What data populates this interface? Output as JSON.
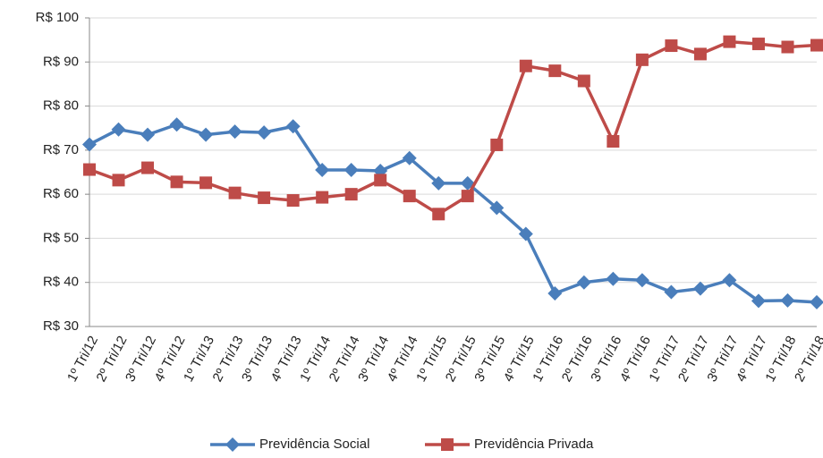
{
  "chart_data": {
    "type": "line",
    "categories": [
      "1º Tri/12",
      "2º Tri/12",
      "3º Tri/12",
      "4º Tri/12",
      "1º Tri/13",
      "2º Tri/13",
      "3º Tri/13",
      "4º Tri/13",
      "1º Tri/14",
      "2º Tri/14",
      "3º Tri/14",
      "4º Tri/14",
      "1º Tri/15",
      "2º Tri/15",
      "3º Tri/15",
      "4º Tri/15",
      "1º Tri/16",
      "2º Tri/16",
      "3º Tri/16",
      "4º Tri/16",
      "1º Tri/17",
      "2º Tri/17",
      "3º Tri/17",
      "4º Tri/17",
      "1º Tri/18",
      "2º Tri/18"
    ],
    "series": [
      {
        "name": "Previdência Social",
        "color": "#4a7ebb",
        "marker": "diamond",
        "values": [
          71.3,
          74.7,
          73.5,
          75.8,
          73.5,
          74.2,
          74,
          75.4,
          65.5,
          65.5,
          65.3,
          68.2,
          62.5,
          62.5,
          56.9,
          51,
          37.5,
          40,
          40.8,
          40.5,
          37.8,
          38.6,
          40.5,
          35.8,
          35.9,
          35.5
        ]
      },
      {
        "name": "Previdência Privada",
        "color": "#be4b48",
        "marker": "square",
        "values": [
          65.6,
          63.2,
          66,
          62.8,
          62.6,
          60.3,
          59.2,
          58.6,
          59.3,
          60,
          63.2,
          59.6,
          55.5,
          59.6,
          71.2,
          89.1,
          88,
          85.7,
          72,
          90.5,
          93.7,
          91.8,
          94.6,
          94.1,
          93.4,
          93.8
        ]
      }
    ],
    "ylim": [
      30,
      100
    ],
    "yticks": [
      {
        "value": 30,
        "label": "R$ 30"
      },
      {
        "value": 40,
        "label": "R$ 40"
      },
      {
        "value": 50,
        "label": "R$ 50"
      },
      {
        "value": 60,
        "label": "R$ 60"
      },
      {
        "value": 70,
        "label": "R$ 70"
      },
      {
        "value": 80,
        "label": "R$ 80"
      },
      {
        "value": 90,
        "label": "R$ 90"
      },
      {
        "value": 100,
        "label": "R$ 100"
      }
    ],
    "grid": true,
    "legend": "bottom"
  }
}
